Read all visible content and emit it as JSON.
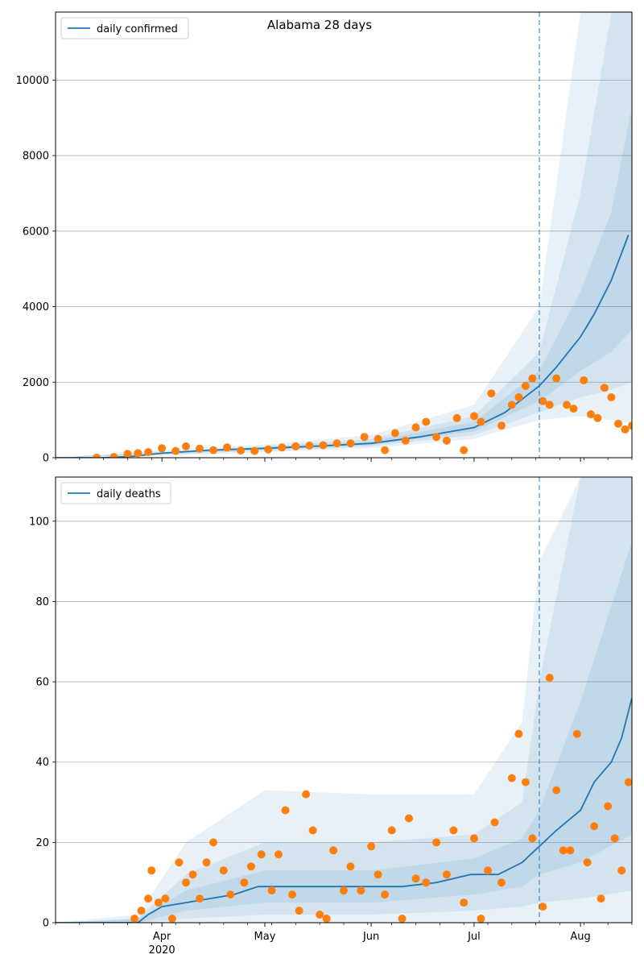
{
  "colors": {
    "line": "#1f77b4",
    "band": "#1f77b4",
    "points": "#ff7f0e",
    "grid": "#b0b0b0",
    "forecast_line": "#1f77b4"
  },
  "x_axis": {
    "start_date": "2020-03-01",
    "end_date": "2020-08-16",
    "month_ticks": [
      {
        "date": "2020-04-01",
        "label": "Apr"
      },
      {
        "date": "2020-05-01",
        "label": "May"
      },
      {
        "date": "2020-06-01",
        "label": "Jun"
      },
      {
        "date": "2020-07-01",
        "label": "Jul"
      },
      {
        "date": "2020-08-01",
        "label": "Aug"
      }
    ],
    "year_label": "2020",
    "forecast_start": "2020-07-20"
  },
  "chart_data": [
    {
      "type": "line",
      "title": "Alabama 28 days",
      "legend": {
        "label": "daily confirmed",
        "position": "top-left"
      },
      "ylim": [
        0,
        11800
      ],
      "yticks": [
        0,
        2000,
        4000,
        6000,
        8000,
        10000
      ],
      "grid": true,
      "series": [
        {
          "name": "daily confirmed",
          "x": [
            "2020-03-01",
            "2020-03-15",
            "2020-03-24",
            "2020-04-01",
            "2020-04-15",
            "2020-05-01",
            "2020-05-15",
            "2020-06-01",
            "2020-06-15",
            "2020-07-01",
            "2020-07-10",
            "2020-07-20",
            "2020-07-25",
            "2020-08-01",
            "2020-08-05",
            "2020-08-10",
            "2020-08-15"
          ],
          "values": [
            0,
            0,
            40,
            120,
            200,
            250,
            300,
            380,
            550,
            800,
            1200,
            1900,
            2400,
            3200,
            3800,
            4700,
            5900
          ]
        }
      ],
      "bands": [
        {
          "x": [
            "2020-03-01",
            "2020-04-01",
            "2020-05-01",
            "2020-06-01",
            "2020-07-01",
            "2020-07-20",
            "2020-08-01",
            "2020-08-10",
            "2020-08-16"
          ],
          "low": [
            0,
            60,
            150,
            250,
            500,
            1000,
            1100,
            1000,
            900
          ],
          "high": [
            0,
            200,
            350,
            600,
            1400,
            4000,
            11800,
            11800,
            11800
          ]
        },
        {
          "x": [
            "2020-03-01",
            "2020-04-01",
            "2020-05-01",
            "2020-06-01",
            "2020-07-01",
            "2020-07-20",
            "2020-08-01",
            "2020-08-10",
            "2020-08-16"
          ],
          "low": [
            0,
            80,
            180,
            300,
            600,
            1200,
            1600,
            1800,
            2000
          ],
          "high": [
            0,
            160,
            300,
            500,
            1100,
            2800,
            7000,
            11800,
            11800
          ]
        },
        {
          "x": [
            "2020-03-01",
            "2020-04-01",
            "2020-05-01",
            "2020-06-01",
            "2020-07-01",
            "2020-07-20",
            "2020-08-01",
            "2020-08-10",
            "2020-08-16"
          ],
          "low": [
            0,
            100,
            210,
            340,
            700,
            1500,
            2300,
            2800,
            3400
          ],
          "high": [
            0,
            140,
            270,
            440,
            950,
            2300,
            4400,
            6500,
            9300
          ]
        }
      ],
      "points": {
        "x": [
          "2020-03-13",
          "2020-03-18",
          "2020-03-22",
          "2020-03-25",
          "2020-03-28",
          "2020-04-01",
          "2020-04-05",
          "2020-04-08",
          "2020-04-12",
          "2020-04-16",
          "2020-04-20",
          "2020-04-24",
          "2020-04-28",
          "2020-05-02",
          "2020-05-06",
          "2020-05-10",
          "2020-05-14",
          "2020-05-18",
          "2020-05-22",
          "2020-05-26",
          "2020-05-30",
          "2020-06-03",
          "2020-06-05",
          "2020-06-08",
          "2020-06-11",
          "2020-06-14",
          "2020-06-17",
          "2020-06-20",
          "2020-06-23",
          "2020-06-26",
          "2020-06-28",
          "2020-07-01",
          "2020-07-03",
          "2020-07-06",
          "2020-07-09",
          "2020-07-12",
          "2020-07-14",
          "2020-07-16",
          "2020-07-18",
          "2020-07-21",
          "2020-07-23",
          "2020-07-25",
          "2020-07-28",
          "2020-07-30",
          "2020-08-02",
          "2020-08-04",
          "2020-08-06",
          "2020-08-08",
          "2020-08-10",
          "2020-08-12",
          "2020-08-14",
          "2020-08-16"
        ],
        "values": [
          0,
          20,
          100,
          120,
          150,
          250,
          180,
          300,
          240,
          200,
          270,
          190,
          180,
          220,
          270,
          300,
          320,
          330,
          380,
          380,
          550,
          500,
          200,
          650,
          450,
          800,
          950,
          550,
          450,
          1050,
          200,
          1100,
          950,
          1700,
          850,
          1400,
          1600,
          1900,
          2100,
          1500,
          1400,
          2100,
          1400,
          1300,
          2050,
          1150,
          1050,
          1850,
          1600,
          900,
          750,
          850
        ]
      }
    },
    {
      "type": "line",
      "title": "",
      "legend": {
        "label": "daily deaths",
        "position": "top-left"
      },
      "ylim": [
        0,
        111
      ],
      "yticks": [
        0,
        20,
        40,
        60,
        80,
        100
      ],
      "grid": true,
      "series": [
        {
          "name": "daily deaths",
          "x": [
            "2020-03-01",
            "2020-03-25",
            "2020-03-28",
            "2020-04-01",
            "2020-04-08",
            "2020-04-15",
            "2020-04-22",
            "2020-04-29",
            "2020-05-05",
            "2020-05-15",
            "2020-05-25",
            "2020-06-01",
            "2020-06-10",
            "2020-06-20",
            "2020-06-30",
            "2020-07-08",
            "2020-07-15",
            "2020-07-20",
            "2020-07-25",
            "2020-08-01",
            "2020-08-05",
            "2020-08-10",
            "2020-08-13",
            "2020-08-16"
          ],
          "values": [
            0,
            0,
            2,
            4,
            5,
            6,
            7,
            9,
            9,
            9,
            9,
            9,
            9,
            10,
            12,
            12,
            15,
            19,
            23,
            28,
            35,
            40,
            46,
            56
          ]
        }
      ],
      "bands": [
        {
          "x": [
            "2020-03-01",
            "2020-03-25",
            "2020-04-08",
            "2020-05-01",
            "2020-06-01",
            "2020-07-01",
            "2020-07-15",
            "2020-07-20",
            "2020-08-01",
            "2020-08-16"
          ],
          "low": [
            0,
            0,
            0,
            0,
            0,
            0,
            0,
            0,
            0,
            0
          ],
          "high": [
            0,
            2,
            20,
            33,
            32,
            32,
            50,
            90,
            111,
            111
          ]
        },
        {
          "x": [
            "2020-03-01",
            "2020-03-25",
            "2020-04-08",
            "2020-05-01",
            "2020-06-01",
            "2020-07-01",
            "2020-07-15",
            "2020-07-20",
            "2020-08-01",
            "2020-08-16"
          ],
          "low": [
            0,
            0,
            1,
            2,
            2,
            3,
            4,
            5,
            6,
            8
          ],
          "high": [
            0,
            1,
            12,
            20,
            20,
            22,
            30,
            60,
            111,
            111
          ]
        },
        {
          "x": [
            "2020-03-01",
            "2020-03-25",
            "2020-04-08",
            "2020-05-01",
            "2020-06-01",
            "2020-07-01",
            "2020-07-15",
            "2020-07-20",
            "2020-08-01",
            "2020-08-16"
          ],
          "low": [
            0,
            0,
            3,
            5,
            5,
            7,
            9,
            12,
            15,
            22
          ],
          "high": [
            0,
            1,
            8,
            13,
            13,
            16,
            21,
            28,
            55,
            95
          ]
        }
      ],
      "points": {
        "x": [
          "2020-03-24",
          "2020-03-26",
          "2020-03-28",
          "2020-03-29",
          "2020-03-31",
          "2020-04-02",
          "2020-04-04",
          "2020-04-06",
          "2020-04-08",
          "2020-04-10",
          "2020-04-12",
          "2020-04-14",
          "2020-04-16",
          "2020-04-19",
          "2020-04-21",
          "2020-04-25",
          "2020-04-27",
          "2020-04-30",
          "2020-05-03",
          "2020-05-05",
          "2020-05-07",
          "2020-05-09",
          "2020-05-11",
          "2020-05-13",
          "2020-05-15",
          "2020-05-17",
          "2020-05-19",
          "2020-05-21",
          "2020-05-24",
          "2020-05-26",
          "2020-05-29",
          "2020-06-01",
          "2020-06-03",
          "2020-06-05",
          "2020-06-07",
          "2020-06-10",
          "2020-06-12",
          "2020-06-14",
          "2020-06-17",
          "2020-06-20",
          "2020-06-23",
          "2020-06-25",
          "2020-06-28",
          "2020-07-01",
          "2020-07-03",
          "2020-07-05",
          "2020-07-07",
          "2020-07-09",
          "2020-07-12",
          "2020-07-14",
          "2020-07-16",
          "2020-07-18",
          "2020-07-21",
          "2020-07-23",
          "2020-07-25",
          "2020-07-27",
          "2020-07-29",
          "2020-07-31",
          "2020-08-03",
          "2020-08-05",
          "2020-08-07",
          "2020-08-09",
          "2020-08-11",
          "2020-08-13",
          "2020-08-15"
        ],
        "values": [
          1,
          3,
          6,
          13,
          5,
          6,
          1,
          15,
          10,
          12,
          6,
          15,
          20,
          13,
          7,
          10,
          14,
          17,
          8,
          17,
          28,
          7,
          3,
          32,
          23,
          2,
          1,
          18,
          8,
          14,
          8,
          19,
          12,
          7,
          23,
          1,
          26,
          11,
          10,
          20,
          12,
          23,
          5,
          21,
          1,
          13,
          25,
          10,
          36,
          47,
          35,
          21,
          4,
          61,
          33,
          18,
          18,
          47,
          15,
          24,
          6,
          29,
          21,
          13,
          35
        ]
      }
    }
  ]
}
